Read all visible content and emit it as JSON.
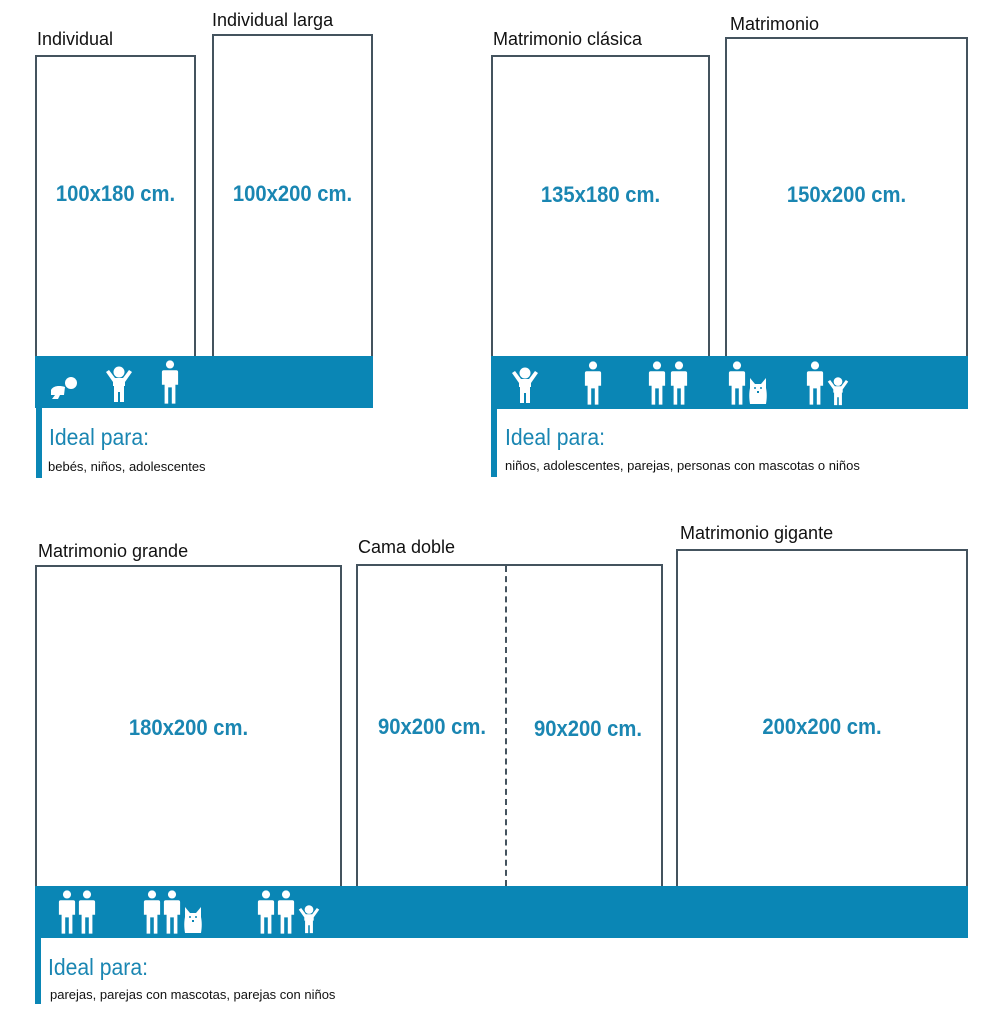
{
  "colors": {
    "accent": "#0a86b5",
    "border": "#44535e"
  },
  "groups": [
    {
      "beds": [
        {
          "name": "Individual",
          "size": "100x180 cm."
        },
        {
          "name": "Individual larga",
          "size": "100x200 cm."
        }
      ],
      "icons": [
        "baby-icon",
        "child-icon",
        "adult-icon"
      ],
      "ideal_label": "Ideal para:",
      "ideal_text": "bebés, niños, adolescentes"
    },
    {
      "beds": [
        {
          "name": "Matrimonio clásica",
          "size": "135x180 cm."
        },
        {
          "name": "Matrimonio",
          "size": "150x200 cm."
        }
      ],
      "icons": [
        "child-icon",
        "adult-icon",
        "couple-icon",
        "adult-with-pet-icon",
        "adult-with-child-icon"
      ],
      "ideal_label": "Ideal para:",
      "ideal_text": "niños, adolescentes, parejas, personas con mascotas o niños"
    },
    {
      "beds": [
        {
          "name": "Matrimonio grande",
          "size": "180x200 cm."
        },
        {
          "name": "Cama doble",
          "size": "90x200 cm.",
          "size2": "90x200 cm."
        },
        {
          "name": "Matrimonio gigante",
          "size": "200x200 cm."
        }
      ],
      "icons": [
        "couple-icon",
        "couple-with-pet-icon",
        "couple-with-child-icon"
      ],
      "ideal_label": "Ideal para:",
      "ideal_text": "parejas, parejas con mascotas, parejas con niños"
    }
  ]
}
